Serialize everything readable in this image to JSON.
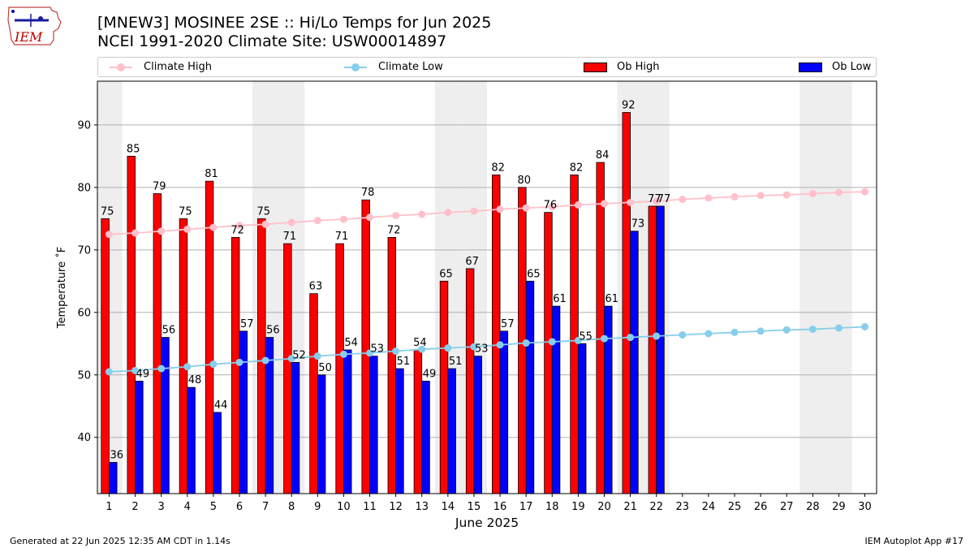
{
  "logo_text": "IEM",
  "title_line1": "[MNEW3] MOSINEE 2SE :: Hi/Lo Temps for Jun 2025",
  "title_line2": "NCEI 1991-2020 Climate Site: USW00014897",
  "footer_left": "Generated at 22 Jun 2025 12:35 AM CDT in 1.14s",
  "footer_right": "IEM Autoplot App #17",
  "legend": [
    {
      "label": "Climate High",
      "kind": "line",
      "color": "#ffc0cb"
    },
    {
      "label": "Climate Low",
      "kind": "line",
      "color": "#87ceeb"
    },
    {
      "label": "Ob High",
      "kind": "bar",
      "color": "#ff0000"
    },
    {
      "label": "Ob Low",
      "kind": "bar",
      "color": "#0000ff"
    }
  ],
  "chart_data": {
    "type": "bar",
    "xlabel": "June 2025",
    "ylabel": "Temperature ˚F",
    "ylim": [
      31,
      97
    ],
    "xlim": [
      0.55,
      30.45
    ],
    "yticks": [
      40,
      50,
      60,
      70,
      80,
      90
    ],
    "grid": "horizontal",
    "days": [
      1,
      2,
      3,
      4,
      5,
      6,
      7,
      8,
      9,
      10,
      11,
      12,
      13,
      14,
      15,
      16,
      17,
      18,
      19,
      20,
      21,
      22,
      23,
      24,
      25,
      26,
      27,
      28,
      29,
      30
    ],
    "weekend_shaded_days": [
      1,
      7,
      8,
      14,
      15,
      21,
      22,
      28,
      29
    ],
    "series": [
      {
        "name": "Ob High",
        "type": "bar",
        "color": "#ff0000",
        "values": [
          75,
          85,
          79,
          75,
          81,
          72,
          75,
          71,
          63,
          71,
          78,
          72,
          54,
          65,
          67,
          82,
          80,
          76,
          82,
          84,
          92,
          77
        ]
      },
      {
        "name": "Ob Low",
        "type": "bar",
        "color": "#0000ff",
        "values": [
          36,
          49,
          56,
          48,
          44,
          57,
          56,
          52,
          50,
          54,
          53,
          51,
          49,
          51,
          53,
          57,
          65,
          61,
          55,
          61,
          73,
          77
        ]
      },
      {
        "name": "Climate High",
        "type": "line",
        "color": "#ffc0cb",
        "values": [
          72.5,
          72.7,
          73.0,
          73.3,
          73.6,
          73.9,
          74.1,
          74.4,
          74.7,
          74.9,
          75.2,
          75.5,
          75.7,
          76.0,
          76.2,
          76.5,
          76.7,
          76.9,
          77.2,
          77.4,
          77.6,
          77.8,
          78.1,
          78.3,
          78.5,
          78.7,
          78.8,
          79.0,
          79.2,
          79.3
        ]
      },
      {
        "name": "Climate Low",
        "type": "line",
        "color": "#87ceeb",
        "values": [
          50.5,
          50.7,
          51.0,
          51.3,
          51.7,
          52.0,
          52.3,
          52.6,
          53.0,
          53.3,
          53.5,
          53.8,
          54.1,
          54.3,
          54.5,
          54.8,
          55.1,
          55.3,
          55.5,
          55.8,
          56.0,
          56.2,
          56.4,
          56.6,
          56.8,
          57.0,
          57.2,
          57.3,
          57.5,
          57.7
        ]
      }
    ]
  }
}
